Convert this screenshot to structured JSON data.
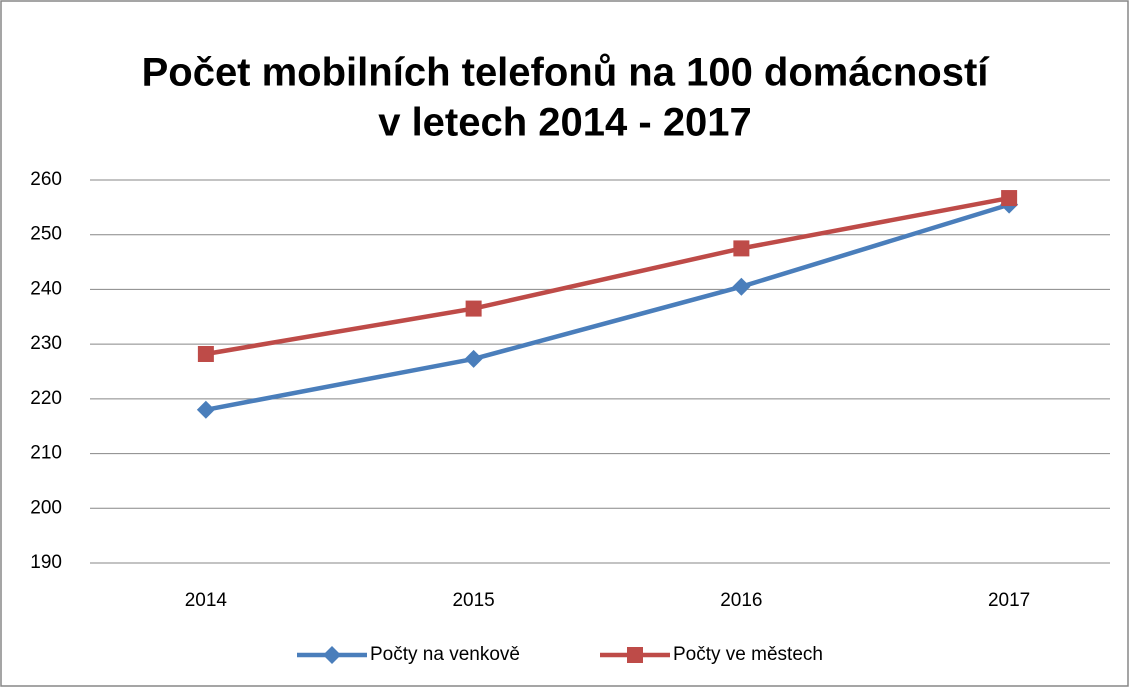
{
  "chart_data": {
    "type": "line",
    "title": [
      "Počet mobilních telefonů na 100 domácností",
      "v letech 2014 - 2017"
    ],
    "categories": [
      "2014",
      "2015",
      "2016",
      "2017"
    ],
    "series": [
      {
        "name": "Počty na venkově",
        "color": "#4a7ebb",
        "marker": "diamond",
        "values": [
          218,
          227.3,
          240.5,
          255.5
        ]
      },
      {
        "name": "Počty ve městech",
        "color": "#be4b48",
        "marker": "square",
        "values": [
          228.2,
          236.5,
          247.5,
          256.7
        ]
      }
    ],
    "ylim": [
      190,
      260
    ],
    "yticks": [
      190,
      200,
      210,
      220,
      230,
      240,
      250,
      260
    ],
    "grid": true,
    "legend": "bottom"
  }
}
